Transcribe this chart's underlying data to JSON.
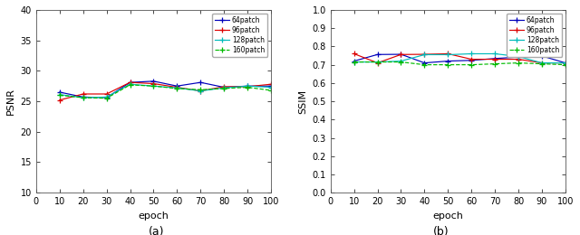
{
  "epochs": [
    10,
    20,
    30,
    40,
    50,
    60,
    70,
    80,
    90,
    100
  ],
  "psnr": {
    "64patch": [
      26.5,
      25.7,
      25.6,
      28.1,
      28.3,
      27.5,
      28.1,
      27.3,
      27.5,
      27.5
    ],
    "96patch": [
      25.2,
      26.2,
      26.2,
      28.1,
      27.9,
      27.3,
      26.7,
      27.4,
      27.4,
      27.8
    ],
    "128patch": [
      26.1,
      25.6,
      25.7,
      27.8,
      27.5,
      27.2,
      26.7,
      27.2,
      27.5,
      27.3
    ],
    "160patch": [
      26.0,
      25.6,
      25.5,
      27.7,
      27.5,
      27.1,
      26.9,
      27.1,
      27.3,
      26.8
    ]
  },
  "ssim": {
    "64patch": [
      0.72,
      0.756,
      0.757,
      0.71,
      0.72,
      0.724,
      0.734,
      0.742,
      0.748,
      0.71
    ],
    "96patch": [
      0.76,
      0.71,
      0.756,
      0.757,
      0.76,
      0.73,
      0.73,
      0.73,
      0.71,
      0.71
    ],
    "128patch": [
      0.715,
      0.715,
      0.72,
      0.755,
      0.755,
      0.76,
      0.76,
      0.745,
      0.71,
      0.71
    ],
    "160patch": [
      0.715,
      0.715,
      0.715,
      0.7,
      0.7,
      0.7,
      0.705,
      0.71,
      0.705,
      0.7
    ]
  },
  "colors": {
    "64patch": "#0000bb",
    "96patch": "#dd0000",
    "128patch": "#00bbbb",
    "160patch": "#00bb00"
  },
  "linestyles": {
    "64patch": "-",
    "96patch": "-",
    "128patch": "-",
    "160patch": "--"
  },
  "psnr_ylim": [
    10,
    40
  ],
  "psnr_yticks": [
    10,
    15,
    20,
    25,
    30,
    35,
    40
  ],
  "ssim_ylim": [
    0,
    1
  ],
  "ssim_yticks": [
    0.0,
    0.1,
    0.2,
    0.3,
    0.4,
    0.5,
    0.6,
    0.7,
    0.8,
    0.9,
    1.0
  ],
  "xticks": [
    0,
    10,
    20,
    30,
    40,
    50,
    60,
    70,
    80,
    90,
    100
  ],
  "xlabel": "epoch",
  "ylabel_a": "PSNR",
  "ylabel_b": "SSIM",
  "label_a": "(a)",
  "label_b": "(b)",
  "bg_color": "#ffffff",
  "fig_bg": "#ffffff"
}
